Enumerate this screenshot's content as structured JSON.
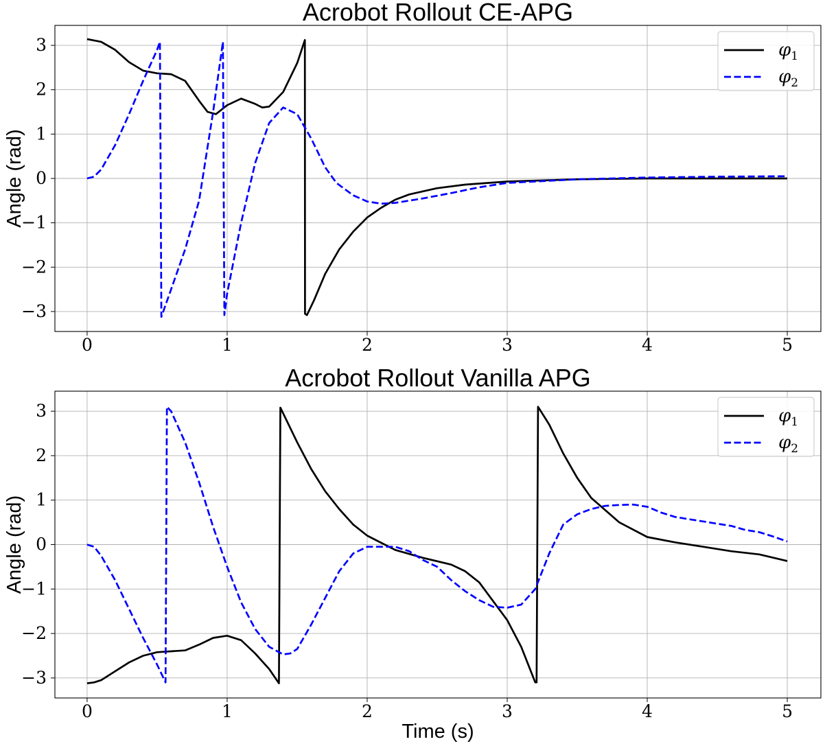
{
  "chart_data": [
    {
      "type": "line",
      "title": "Acrobot Rollout CE-APG",
      "xlabel": "",
      "ylabel": "Angle (rad)",
      "xlim": [
        -0.23,
        5.24
      ],
      "ylim": [
        -3.45,
        3.45
      ],
      "xticks": [
        0,
        1,
        2,
        3,
        4,
        5
      ],
      "yticks": [
        -3,
        -2,
        -1,
        0,
        1,
        2,
        3
      ],
      "grid": true,
      "legend_position": "top-right",
      "series": [
        {
          "name": "φ",
          "sub": "1",
          "color": "#000000",
          "dash": "solid",
          "x": [
            0,
            0.1,
            0.2,
            0.3,
            0.4,
            0.5,
            0.6,
            0.7,
            0.8,
            0.86,
            0.92,
            1.0,
            1.1,
            1.2,
            1.25,
            1.3,
            1.4,
            1.5,
            1.555,
            1.556,
            1.57,
            1.62,
            1.7,
            1.8,
            1.9,
            2.0,
            2.1,
            2.2,
            2.3,
            2.5,
            2.7,
            3.0,
            3.5,
            4.0,
            4.5,
            5.0
          ],
          "y": [
            3.14,
            3.08,
            2.9,
            2.62,
            2.43,
            2.37,
            2.35,
            2.2,
            1.75,
            1.5,
            1.45,
            1.65,
            1.8,
            1.68,
            1.6,
            1.62,
            1.95,
            2.6,
            3.12,
            -3.05,
            -3.08,
            -2.75,
            -2.15,
            -1.6,
            -1.2,
            -0.88,
            -0.66,
            -0.48,
            -0.36,
            -0.22,
            -0.14,
            -0.07,
            -0.02,
            0.0,
            0.0,
            0.0
          ]
        },
        {
          "name": "φ",
          "sub": "2",
          "color": "#0000ff",
          "dash": "dashed",
          "x": [
            0,
            0.05,
            0.1,
            0.2,
            0.3,
            0.4,
            0.5,
            0.52,
            0.53,
            0.6,
            0.7,
            0.8,
            0.9,
            0.97,
            0.98,
            1.0,
            1.1,
            1.2,
            1.3,
            1.4,
            1.5,
            1.6,
            1.7,
            1.78,
            1.9,
            2.0,
            2.1,
            2.2,
            2.4,
            2.6,
            2.8,
            3.0,
            3.5,
            4.0,
            4.5,
            5.0
          ],
          "y": [
            0.0,
            0.04,
            0.2,
            0.75,
            1.45,
            2.2,
            2.9,
            3.08,
            -3.12,
            -2.5,
            -1.6,
            -0.5,
            1.5,
            3.08,
            -3.08,
            -2.6,
            -1.0,
            0.35,
            1.25,
            1.6,
            1.45,
            0.9,
            0.25,
            -0.1,
            -0.38,
            -0.52,
            -0.57,
            -0.55,
            -0.45,
            -0.33,
            -0.2,
            -0.1,
            -0.02,
            0.02,
            0.04,
            0.05
          ]
        }
      ]
    },
    {
      "type": "line",
      "title": "Acrobot Rollout Vanilla APG",
      "xlabel": "Time (s)",
      "ylabel": "Angle (rad)",
      "xlim": [
        -0.23,
        5.24
      ],
      "ylim": [
        -3.45,
        3.45
      ],
      "xticks": [
        0,
        1,
        2,
        3,
        4,
        5
      ],
      "yticks": [
        -3,
        -2,
        -1,
        0,
        1,
        2,
        3
      ],
      "grid": true,
      "legend_position": "top-right",
      "series": [
        {
          "name": "φ",
          "sub": "1",
          "color": "#000000",
          "dash": "solid",
          "x": [
            0,
            0.05,
            0.1,
            0.2,
            0.3,
            0.4,
            0.5,
            0.6,
            0.7,
            0.8,
            0.9,
            1.0,
            1.1,
            1.2,
            1.3,
            1.37,
            1.38,
            1.4,
            1.5,
            1.6,
            1.7,
            1.8,
            1.9,
            2.0,
            2.2,
            2.4,
            2.6,
            2.7,
            2.8,
            3.0,
            3.1,
            3.2,
            3.21,
            3.22,
            3.3,
            3.4,
            3.5,
            3.6,
            3.8,
            4.0,
            4.2,
            4.4,
            4.6,
            4.8,
            5.0
          ],
          "y": [
            -3.12,
            -3.1,
            -3.05,
            -2.85,
            -2.65,
            -2.5,
            -2.42,
            -2.4,
            -2.38,
            -2.25,
            -2.1,
            -2.05,
            -2.15,
            -2.45,
            -2.8,
            -3.12,
            3.08,
            2.95,
            2.3,
            1.7,
            1.2,
            0.8,
            0.45,
            0.2,
            -0.12,
            -0.3,
            -0.45,
            -0.6,
            -0.85,
            -1.7,
            -2.3,
            -3.1,
            -3.1,
            3.1,
            2.7,
            2.05,
            1.5,
            1.05,
            0.5,
            0.17,
            0.05,
            -0.05,
            -0.15,
            -0.22,
            -0.37
          ]
        },
        {
          "name": "φ",
          "sub": "2",
          "color": "#0000ff",
          "dash": "dashed",
          "x": [
            0,
            0.05,
            0.1,
            0.2,
            0.3,
            0.4,
            0.5,
            0.56,
            0.57,
            0.6,
            0.7,
            0.8,
            0.9,
            1.0,
            1.1,
            1.2,
            1.3,
            1.4,
            1.45,
            1.5,
            1.6,
            1.7,
            1.8,
            1.9,
            2.0,
            2.1,
            2.2,
            2.3,
            2.4,
            2.5,
            2.6,
            2.7,
            2.8,
            2.9,
            3.0,
            3.1,
            3.2,
            3.3,
            3.4,
            3.5,
            3.6,
            3.7,
            3.8,
            3.9,
            4.0,
            4.1,
            4.2,
            4.3,
            4.4,
            4.5,
            4.6,
            4.7,
            4.8,
            4.9,
            5.0
          ],
          "y": [
            0.0,
            -0.05,
            -0.25,
            -0.8,
            -1.45,
            -2.1,
            -2.7,
            -3.1,
            3.1,
            3.0,
            2.3,
            1.4,
            0.4,
            -0.5,
            -1.3,
            -1.9,
            -2.3,
            -2.47,
            -2.45,
            -2.35,
            -1.8,
            -1.2,
            -0.6,
            -0.2,
            -0.05,
            -0.05,
            -0.05,
            -0.15,
            -0.35,
            -0.5,
            -0.8,
            -1.05,
            -1.25,
            -1.4,
            -1.42,
            -1.35,
            -1.0,
            -0.2,
            0.45,
            0.68,
            0.8,
            0.87,
            0.89,
            0.9,
            0.85,
            0.72,
            0.62,
            0.57,
            0.52,
            0.47,
            0.42,
            0.33,
            0.28,
            0.18,
            0.07
          ]
        }
      ]
    }
  ]
}
